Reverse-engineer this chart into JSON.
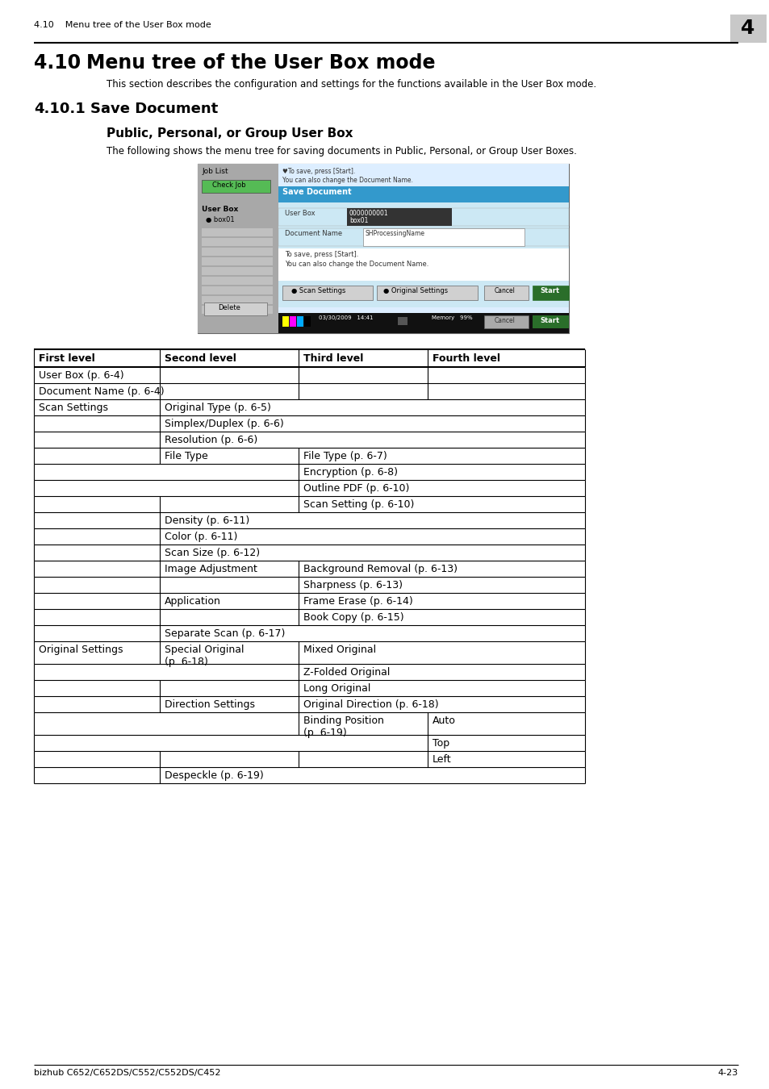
{
  "header_section_num": "4.10",
  "header_section_title": "Menu tree of the User Box mode",
  "chapter_num": "4",
  "main_subtitle": "This section describes the configuration and settings for the functions available in the User Box mode.",
  "sub_sub_desc": "The following shows the menu tree for saving documents in Public, Personal, or Group User Boxes.",
  "footer_left": "bizhub C652/C652DS/C552/C552DS/C452",
  "footer_right": "4-23",
  "table_headers": [
    "First level",
    "Second level",
    "Third level",
    "Fourth level"
  ],
  "bg_color": "#ffffff"
}
